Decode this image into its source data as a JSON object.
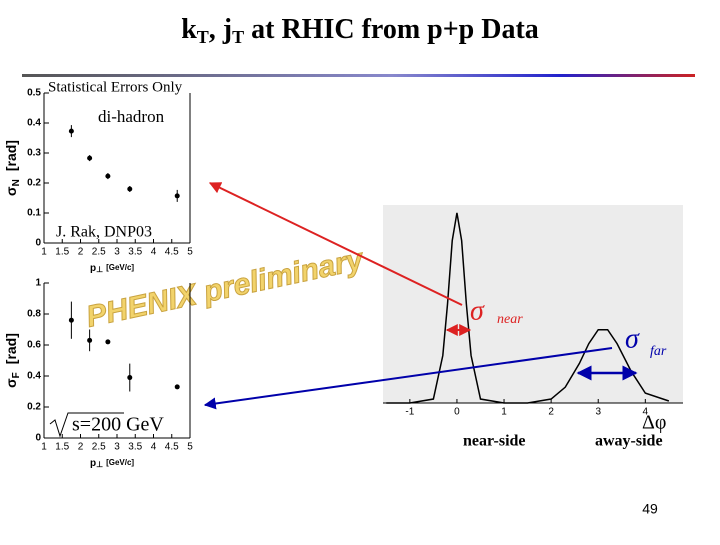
{
  "slide": {
    "title": [
      "k",
      "T",
      ", j",
      "T",
      " at RHIC from p+p Data"
    ],
    "watermark": "PHENIX preliminary",
    "page_number": "49"
  },
  "chart_data": [
    {
      "type": "scatter",
      "ylabel": [
        "σ",
        "N",
        "[rad]"
      ],
      "xlabel": [
        "p",
        "⊥",
        "[GeV/c]"
      ],
      "annotations": [
        "Statistical Errors Only",
        "di-hadron",
        "J. Rak, DNP03"
      ],
      "x": [
        1.75,
        2.25,
        2.75,
        3.35,
        4.65
      ],
      "series": [
        {
          "color": "#000000",
          "values": [
            0.373,
            0.283,
            0.223,
            0.18,
            0.157
          ],
          "errors": [
            0.02,
            0.01,
            0.01,
            0.01,
            0.02
          ]
        }
      ],
      "xlim": [
        1,
        5
      ],
      "xticks": [
        1,
        1.5,
        2,
        2.5,
        3,
        3.5,
        4,
        4.5,
        5
      ],
      "ylim": [
        0,
        0.5
      ],
      "yticks": [
        0,
        0.1,
        0.2,
        0.3,
        0.4,
        0.5
      ]
    },
    {
      "type": "scatter",
      "ylabel": [
        "σ",
        "F",
        "[rad]"
      ],
      "xlabel": [
        "p",
        "⊥",
        "[GeV/c]"
      ],
      "annotations": [
        "s=200 GeV"
      ],
      "x": [
        1.75,
        2.25,
        2.75,
        3.35,
        4.65
      ],
      "series": [
        {
          "color": "#000000",
          "values": [
            0.76,
            0.63,
            0.62,
            0.39,
            0.33
          ],
          "errors": [
            0.12,
            0.07,
            0,
            0.09,
            0
          ]
        }
      ],
      "xlim": [
        1,
        5
      ],
      "xticks": [
        1,
        1.5,
        2,
        2.5,
        3,
        3.5,
        4,
        4.5,
        5
      ],
      "ylim": [
        0,
        1
      ],
      "yticks": [
        0,
        0.2,
        0.4,
        0.6,
        0.8,
        1
      ]
    },
    {
      "type": "line",
      "annotations": [
        "σ",
        "near",
        "σ",
        "far",
        "Δφ",
        "near-side",
        "away-side"
      ],
      "x": [
        -1.5,
        -1,
        -0.5,
        -0.3,
        -0.2,
        -0.1,
        0,
        0.1,
        0.2,
        0.3,
        0.5,
        1,
        1.5,
        2,
        2.3,
        2.6,
        2.8,
        3,
        3.2,
        3.4,
        3.7,
        4,
        4.5
      ],
      "series": [
        {
          "color": "#000000",
          "values": [
            0,
            0,
            0.02,
            0.24,
            0.5,
            0.82,
            0.96,
            0.82,
            0.5,
            0.24,
            0.02,
            0,
            0,
            0.02,
            0.08,
            0.2,
            0.3,
            0.37,
            0.37,
            0.3,
            0.16,
            0.05,
            0.01
          ]
        }
      ],
      "xlim": [
        -1.57,
        4.8
      ],
      "xticks": [
        -1,
        0,
        1,
        2,
        3,
        4
      ],
      "ylim": [
        0,
        1
      ]
    }
  ]
}
